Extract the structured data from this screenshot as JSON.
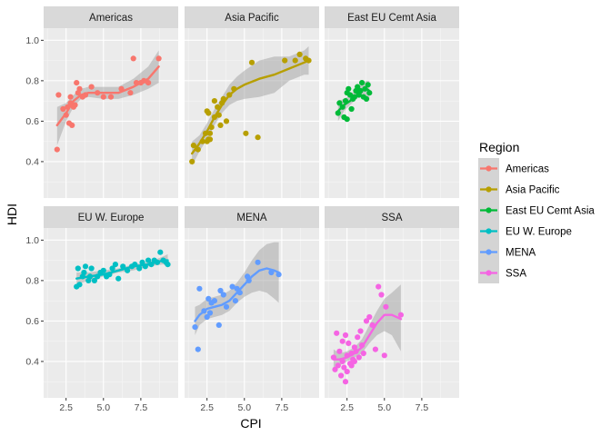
{
  "chart_data": {
    "type": "scatter",
    "xlabel": "CPI",
    "ylabel": "HDI",
    "xlim": [
      1.0,
      10.0
    ],
    "ylim": [
      0.22,
      1.06
    ],
    "x_ticks": [
      2.5,
      5.0,
      7.5
    ],
    "x_tick_labels": [
      "2.5",
      "5.0",
      "7.5"
    ],
    "y_ticks": [
      0.4,
      0.6,
      0.8,
      1.0
    ],
    "y_tick_labels": [
      "0.4",
      "0.6",
      "0.8",
      "1.0"
    ],
    "grid": true,
    "smoother": "loess with confidence band",
    "legend": {
      "title": "Region",
      "placement": "right"
    },
    "facets": [
      {
        "name": "Americas",
        "color": "#F8766D",
        "points": [
          [
            1.9,
            0.46
          ],
          [
            2.0,
            0.73
          ],
          [
            2.3,
            0.66
          ],
          [
            2.5,
            0.63
          ],
          [
            2.6,
            0.67
          ],
          [
            2.7,
            0.59
          ],
          [
            2.8,
            0.72
          ],
          [
            2.8,
            0.69
          ],
          [
            2.9,
            0.58
          ],
          [
            3.0,
            0.67
          ],
          [
            3.1,
            0.68
          ],
          [
            3.2,
            0.79
          ],
          [
            3.3,
            0.74
          ],
          [
            3.4,
            0.76
          ],
          [
            3.6,
            0.72
          ],
          [
            3.8,
            0.73
          ],
          [
            4.2,
            0.77
          ],
          [
            4.6,
            0.74
          ],
          [
            5.0,
            0.72
          ],
          [
            5.5,
            0.72
          ],
          [
            6.2,
            0.76
          ],
          [
            6.8,
            0.74
          ],
          [
            7.0,
            0.91
          ],
          [
            7.2,
            0.79
          ],
          [
            7.5,
            0.79
          ],
          [
            7.7,
            0.8
          ],
          [
            8.0,
            0.79
          ],
          [
            8.7,
            0.91
          ]
        ],
        "smooth": [
          [
            1.9,
            0.58
          ],
          [
            2.5,
            0.64
          ],
          [
            3.0,
            0.7
          ],
          [
            3.5,
            0.73
          ],
          [
            4.0,
            0.74
          ],
          [
            5.0,
            0.74
          ],
          [
            6.0,
            0.74
          ],
          [
            7.0,
            0.77
          ],
          [
            8.0,
            0.81
          ],
          [
            8.7,
            0.87
          ]
        ],
        "band": [
          [
            1.9,
            0.48,
            0.67
          ],
          [
            2.5,
            0.6,
            0.69
          ],
          [
            3.0,
            0.67,
            0.73
          ],
          [
            3.5,
            0.71,
            0.76
          ],
          [
            4.0,
            0.72,
            0.77
          ],
          [
            5.0,
            0.71,
            0.77
          ],
          [
            6.0,
            0.71,
            0.77
          ],
          [
            7.0,
            0.73,
            0.81
          ],
          [
            8.0,
            0.76,
            0.87
          ],
          [
            8.7,
            0.79,
            0.95
          ]
        ]
      },
      {
        "name": "Asia Pacific",
        "color": "#B79F00",
        "points": [
          [
            1.5,
            0.4
          ],
          [
            1.6,
            0.48
          ],
          [
            1.9,
            0.46
          ],
          [
            2.2,
            0.5
          ],
          [
            2.4,
            0.54
          ],
          [
            2.5,
            0.65
          ],
          [
            2.5,
            0.5
          ],
          [
            2.6,
            0.51
          ],
          [
            2.6,
            0.64
          ],
          [
            2.7,
            0.54
          ],
          [
            2.7,
            0.51
          ],
          [
            2.8,
            0.57
          ],
          [
            3.0,
            0.62
          ],
          [
            3.0,
            0.7
          ],
          [
            3.2,
            0.67
          ],
          [
            3.3,
            0.63
          ],
          [
            3.4,
            0.58
          ],
          [
            3.5,
            0.69
          ],
          [
            3.6,
            0.71
          ],
          [
            3.8,
            0.6
          ],
          [
            4.0,
            0.73
          ],
          [
            4.3,
            0.76
          ],
          [
            5.1,
            0.54
          ],
          [
            5.5,
            0.89
          ],
          [
            5.9,
            0.52
          ],
          [
            7.7,
            0.9
          ],
          [
            8.4,
            0.9
          ],
          [
            8.7,
            0.93
          ],
          [
            9.1,
            0.91
          ],
          [
            9.3,
            0.9
          ]
        ],
        "smooth": [
          [
            1.5,
            0.44
          ],
          [
            2.0,
            0.49
          ],
          [
            2.5,
            0.55
          ],
          [
            3.0,
            0.62
          ],
          [
            3.5,
            0.68
          ],
          [
            4.0,
            0.73
          ],
          [
            4.5,
            0.76
          ],
          [
            5.0,
            0.78
          ],
          [
            6.0,
            0.81
          ],
          [
            7.0,
            0.83
          ],
          [
            8.0,
            0.86
          ],
          [
            9.0,
            0.89
          ],
          [
            9.3,
            0.9
          ]
        ],
        "band": [
          [
            1.5,
            0.38,
            0.5
          ],
          [
            2.0,
            0.45,
            0.53
          ],
          [
            2.5,
            0.51,
            0.59
          ],
          [
            3.0,
            0.58,
            0.66
          ],
          [
            3.5,
            0.64,
            0.72
          ],
          [
            4.0,
            0.68,
            0.78
          ],
          [
            4.5,
            0.7,
            0.82
          ],
          [
            5.0,
            0.71,
            0.85
          ],
          [
            6.0,
            0.72,
            0.9
          ],
          [
            7.0,
            0.74,
            0.92
          ],
          [
            8.0,
            0.8,
            0.92
          ],
          [
            9.0,
            0.83,
            0.95
          ],
          [
            9.3,
            0.83,
            0.97
          ]
        ]
      },
      {
        "name": "East EU Cemt Asia",
        "color": "#00BA38",
        "points": [
          [
            1.9,
            0.64
          ],
          [
            2.0,
            0.69
          ],
          [
            2.2,
            0.67
          ],
          [
            2.3,
            0.62
          ],
          [
            2.4,
            0.7
          ],
          [
            2.5,
            0.61
          ],
          [
            2.5,
            0.74
          ],
          [
            2.6,
            0.76
          ],
          [
            2.7,
            0.73
          ],
          [
            2.8,
            0.66
          ],
          [
            2.9,
            0.71
          ],
          [
            3.0,
            0.72
          ],
          [
            3.1,
            0.75
          ],
          [
            3.2,
            0.77
          ],
          [
            3.3,
            0.73
          ],
          [
            3.4,
            0.75
          ],
          [
            3.5,
            0.79
          ],
          [
            3.6,
            0.72
          ],
          [
            3.7,
            0.76
          ],
          [
            3.8,
            0.71
          ],
          [
            3.9,
            0.78
          ],
          [
            4.0,
            0.74
          ]
        ],
        "smooth": [
          [
            1.9,
            0.65
          ],
          [
            2.3,
            0.68
          ],
          [
            2.7,
            0.7
          ],
          [
            3.0,
            0.72
          ],
          [
            3.3,
            0.74
          ],
          [
            3.6,
            0.76
          ],
          [
            3.8,
            0.76
          ],
          [
            4.0,
            0.75
          ]
        ],
        "band": [
          [
            1.9,
            0.6,
            0.7
          ],
          [
            2.3,
            0.65,
            0.71
          ],
          [
            2.7,
            0.68,
            0.73
          ],
          [
            3.0,
            0.7,
            0.75
          ],
          [
            3.3,
            0.72,
            0.77
          ],
          [
            3.6,
            0.73,
            0.79
          ],
          [
            3.8,
            0.72,
            0.8
          ],
          [
            4.0,
            0.7,
            0.8
          ]
        ]
      },
      {
        "name": "EU W. Europe",
        "color": "#00BFC4",
        "points": [
          [
            3.2,
            0.77
          ],
          [
            3.3,
            0.86
          ],
          [
            3.4,
            0.78
          ],
          [
            3.6,
            0.82
          ],
          [
            3.7,
            0.84
          ],
          [
            3.8,
            0.87
          ],
          [
            4.0,
            0.8
          ],
          [
            4.1,
            0.82
          ],
          [
            4.2,
            0.86
          ],
          [
            4.4,
            0.8
          ],
          [
            4.6,
            0.82
          ],
          [
            4.8,
            0.84
          ],
          [
            5.0,
            0.85
          ],
          [
            5.2,
            0.82
          ],
          [
            5.4,
            0.83
          ],
          [
            5.6,
            0.86
          ],
          [
            5.8,
            0.88
          ],
          [
            6.0,
            0.81
          ],
          [
            6.3,
            0.87
          ],
          [
            6.6,
            0.85
          ],
          [
            6.9,
            0.87
          ],
          [
            7.1,
            0.88
          ],
          [
            7.4,
            0.86
          ],
          [
            7.6,
            0.89
          ],
          [
            7.8,
            0.87
          ],
          [
            8.0,
            0.9
          ],
          [
            8.2,
            0.88
          ],
          [
            8.4,
            0.9
          ],
          [
            8.6,
            0.89
          ],
          [
            8.8,
            0.94
          ],
          [
            9.0,
            0.9
          ],
          [
            9.2,
            0.89
          ],
          [
            9.3,
            0.88
          ]
        ],
        "smooth": [
          [
            3.2,
            0.81
          ],
          [
            4.0,
            0.82
          ],
          [
            5.0,
            0.83
          ],
          [
            6.0,
            0.85
          ],
          [
            7.0,
            0.87
          ],
          [
            8.0,
            0.88
          ],
          [
            9.0,
            0.9
          ],
          [
            9.3,
            0.9
          ]
        ],
        "band": [
          [
            3.2,
            0.78,
            0.84
          ],
          [
            4.0,
            0.8,
            0.84
          ],
          [
            5.0,
            0.82,
            0.85
          ],
          [
            6.0,
            0.84,
            0.86
          ],
          [
            7.0,
            0.85,
            0.88
          ],
          [
            8.0,
            0.87,
            0.89
          ],
          [
            9.0,
            0.88,
            0.92
          ],
          [
            9.3,
            0.87,
            0.93
          ]
        ]
      },
      {
        "name": "MENA",
        "color": "#619CFF",
        "points": [
          [
            1.7,
            0.57
          ],
          [
            1.9,
            0.46
          ],
          [
            2.0,
            0.76
          ],
          [
            2.3,
            0.65
          ],
          [
            2.5,
            0.62
          ],
          [
            2.6,
            0.71
          ],
          [
            2.7,
            0.64
          ],
          [
            2.8,
            0.69
          ],
          [
            3.0,
            0.7
          ],
          [
            3.3,
            0.58
          ],
          [
            3.4,
            0.75
          ],
          [
            3.6,
            0.73
          ],
          [
            3.8,
            0.67
          ],
          [
            4.2,
            0.77
          ],
          [
            4.4,
            0.7
          ],
          [
            4.5,
            0.76
          ],
          [
            4.7,
            0.74
          ],
          [
            5.2,
            0.82
          ],
          [
            5.3,
            0.8
          ],
          [
            5.9,
            0.89
          ],
          [
            6.8,
            0.84
          ],
          [
            7.3,
            0.83
          ]
        ],
        "smooth": [
          [
            1.7,
            0.6
          ],
          [
            2.0,
            0.63
          ],
          [
            2.5,
            0.66
          ],
          [
            3.0,
            0.67
          ],
          [
            3.5,
            0.68
          ],
          [
            4.0,
            0.7
          ],
          [
            4.5,
            0.74
          ],
          [
            5.0,
            0.78
          ],
          [
            5.5,
            0.82
          ],
          [
            6.0,
            0.85
          ],
          [
            6.5,
            0.86
          ],
          [
            7.0,
            0.85
          ],
          [
            7.3,
            0.84
          ]
        ],
        "band": [
          [
            1.7,
            0.53,
            0.67
          ],
          [
            2.0,
            0.58,
            0.68
          ],
          [
            2.5,
            0.61,
            0.71
          ],
          [
            3.0,
            0.62,
            0.72
          ],
          [
            3.5,
            0.63,
            0.73
          ],
          [
            4.0,
            0.65,
            0.75
          ],
          [
            4.5,
            0.69,
            0.79
          ],
          [
            5.0,
            0.72,
            0.84
          ],
          [
            5.5,
            0.74,
            0.9
          ],
          [
            6.0,
            0.75,
            0.95
          ],
          [
            6.5,
            0.74,
            0.98
          ],
          [
            7.0,
            0.71,
            0.99
          ],
          [
            7.3,
            0.69,
            0.99
          ]
        ]
      },
      {
        "name": "SSA",
        "color": "#F564E3",
        "points": [
          [
            1.6,
            0.42
          ],
          [
            1.7,
            0.36
          ],
          [
            1.8,
            0.54
          ],
          [
            1.9,
            0.38
          ],
          [
            2.0,
            0.45
          ],
          [
            2.1,
            0.33
          ],
          [
            2.2,
            0.5
          ],
          [
            2.2,
            0.4
          ],
          [
            2.3,
            0.37
          ],
          [
            2.4,
            0.53
          ],
          [
            2.4,
            0.3
          ],
          [
            2.5,
            0.43
          ],
          [
            2.5,
            0.35
          ],
          [
            2.6,
            0.49
          ],
          [
            2.7,
            0.39
          ],
          [
            2.8,
            0.44
          ],
          [
            2.8,
            0.38
          ],
          [
            2.9,
            0.41
          ],
          [
            3.0,
            0.47
          ],
          [
            3.0,
            0.4
          ],
          [
            3.1,
            0.45
          ],
          [
            3.2,
            0.52
          ],
          [
            3.3,
            0.42
          ],
          [
            3.4,
            0.55
          ],
          [
            3.5,
            0.48
          ],
          [
            3.6,
            0.44
          ],
          [
            3.8,
            0.6
          ],
          [
            4.0,
            0.62
          ],
          [
            4.2,
            0.58
          ],
          [
            4.4,
            0.46
          ],
          [
            4.6,
            0.77
          ],
          [
            4.8,
            0.73
          ],
          [
            5.0,
            0.43
          ],
          [
            5.1,
            0.67
          ],
          [
            6.1,
            0.63
          ]
        ],
        "smooth": [
          [
            1.6,
            0.41
          ],
          [
            2.0,
            0.41
          ],
          [
            2.5,
            0.42
          ],
          [
            3.0,
            0.44
          ],
          [
            3.5,
            0.47
          ],
          [
            4.0,
            0.53
          ],
          [
            4.5,
            0.59
          ],
          [
            5.0,
            0.63
          ],
          [
            5.5,
            0.63
          ],
          [
            6.1,
            0.61
          ]
        ],
        "band": [
          [
            1.6,
            0.36,
            0.46
          ],
          [
            2.0,
            0.38,
            0.44
          ],
          [
            2.5,
            0.4,
            0.45
          ],
          [
            3.0,
            0.42,
            0.47
          ],
          [
            3.5,
            0.44,
            0.51
          ],
          [
            4.0,
            0.49,
            0.58
          ],
          [
            4.5,
            0.53,
            0.65
          ],
          [
            5.0,
            0.55,
            0.71
          ],
          [
            5.5,
            0.53,
            0.74
          ],
          [
            6.1,
            0.45,
            0.78
          ]
        ]
      }
    ]
  }
}
